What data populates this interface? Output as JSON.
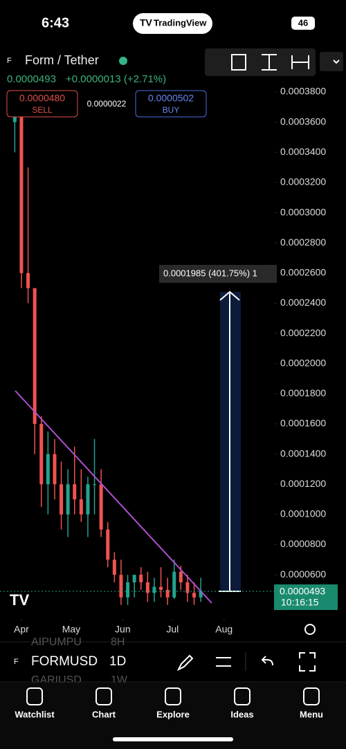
{
  "status_bar": {
    "time": "6:43",
    "app": "TradingView",
    "battery": "46"
  },
  "header": {
    "pair": "Form / Tether",
    "price": "0.0000493",
    "change": "+0.0000013 (+2.71%)",
    "sell_price": "0.0000480",
    "sell": "SELL",
    "spread": "0.0000022",
    "buy_price": "0.0000502",
    "buy": "BUY"
  },
  "chart_data": {
    "type": "candlestick",
    "up_color": "#22a38f",
    "down_color": "#f05350",
    "x": [
      -4,
      0,
      4,
      8,
      12,
      16,
      20,
      24,
      28,
      32,
      36,
      40,
      44,
      48,
      52,
      56,
      60,
      64,
      68,
      72,
      76,
      80,
      84,
      88,
      92,
      96,
      100,
      104,
      108
    ],
    "open": [
      0.00036,
      0.00037,
      0.00026,
      0.00025,
      0.00016,
      0.00012,
      0.00014,
      0.00012,
      0.0001,
      0.00012,
      0.00011,
      0.0001,
      0.00012,
      0.00012,
      9e-05,
      7e-05,
      6e-05,
      4.5e-05,
      5.5e-05,
      6e-05,
      5.5e-05,
      4.8e-05,
      5.2e-05,
      5e-05,
      4.5e-05,
      6.2e-05,
      5.5e-05,
      4.8e-05,
      4.5e-05
    ],
    "high": [
      0.00038,
      0.00038,
      0.00033,
      0.00025,
      0.000165,
      0.000155,
      0.00015,
      0.000135,
      0.00013,
      0.000145,
      0.00013,
      0.000125,
      0.00015,
      0.00013,
      9.5e-05,
      7.5e-05,
      7e-05,
      6e-05,
      6e-05,
      6.5e-05,
      6.2e-05,
      5.8e-05,
      6.5e-05,
      5.8e-05,
      7e-05,
      6.6e-05,
      6e-05,
      5.5e-05,
      5.8e-05
    ],
    "low": [
      0.00034,
      0.00025,
      0.00024,
      0.00014,
      0.000105,
      0.0001,
      0.00011,
      9e-05,
      8.5e-05,
      0.0001,
      9.5e-05,
      8.5e-05,
      0.0001,
      8.5e-05,
      6.5e-05,
      5.5e-05,
      4e-05,
      4e-05,
      4.5e-05,
      5e-05,
      4.2e-05,
      4.2e-05,
      4.5e-05,
      4e-05,
      4.4e-05,
      5e-05,
      4.2e-05,
      4e-05,
      4.2e-05
    ],
    "close": [
      0.00037,
      0.00026,
      0.00025,
      0.00016,
      0.00012,
      0.00014,
      0.00012,
      0.0001,
      0.00012,
      0.00011,
      0.0001,
      0.00012,
      0.00012,
      9e-05,
      7e-05,
      6e-05,
      4.5e-05,
      5.5e-05,
      6e-05,
      5.5e-05,
      4.8e-05,
      5.2e-05,
      5e-05,
      4.5e-05,
      6.2e-05,
      5.5e-05,
      4.8e-05,
      4.5e-05,
      4.93e-05
    ],
    "xlim": [
      -12.9,
      151.7
    ],
    "xticks": [
      {
        "value": 0,
        "label": "Apr"
      },
      {
        "value": 30,
        "label": "May"
      },
      {
        "value": 61,
        "label": "Jun"
      },
      {
        "value": 91,
        "label": "Jul"
      },
      {
        "value": 122,
        "label": "Aug"
      }
    ],
    "ylim": [
      3.07e-05,
      0.0004089
    ],
    "yticks": [
      {
        "value": 6e-05,
        "label": "0.0000600"
      },
      {
        "value": 8e-05,
        "label": "0.0000800"
      },
      {
        "value": 0.0001,
        "label": "0.0001000"
      },
      {
        "value": 0.00012,
        "label": "0.0001200"
      },
      {
        "value": 0.00014,
        "label": "0.0001400"
      },
      {
        "value": 0.00016,
        "label": "0.0001600"
      },
      {
        "value": 0.00018,
        "label": "0.0001800"
      },
      {
        "value": 0.0002,
        "label": "0.0002000"
      },
      {
        "value": 0.00022,
        "label": "0.0002200"
      },
      {
        "value": 0.00024,
        "label": "0.0002400"
      },
      {
        "value": 0.00026,
        "label": "0.0002600"
      },
      {
        "value": 0.00028,
        "label": "0.0002800"
      },
      {
        "value": 0.0003,
        "label": "0.0003000"
      },
      {
        "value": 0.00032,
        "label": "0.0003200"
      },
      {
        "value": 0.00034,
        "label": "0.0003400"
      },
      {
        "value": 0.00036,
        "label": "0.0003600"
      },
      {
        "value": 0.00038,
        "label": "0.0003800"
      }
    ]
  },
  "measure": {
    "label": "0.0001985 (401.75%) 1"
  },
  "price_tag": {
    "price": "0.0000493",
    "countdown": "10:16:15"
  },
  "toolbar": {
    "symbol": "FORMUSD",
    "interval": "1D",
    "behind_symbol_1": "AIPUMPU",
    "behind_interval_1": "8H",
    "behind_symbol_2": "GARIUSD",
    "behind_interval_2": "1W"
  },
  "nav": [
    "Watchlist",
    "Chart",
    "Explore",
    "Ideas",
    "Menu"
  ]
}
